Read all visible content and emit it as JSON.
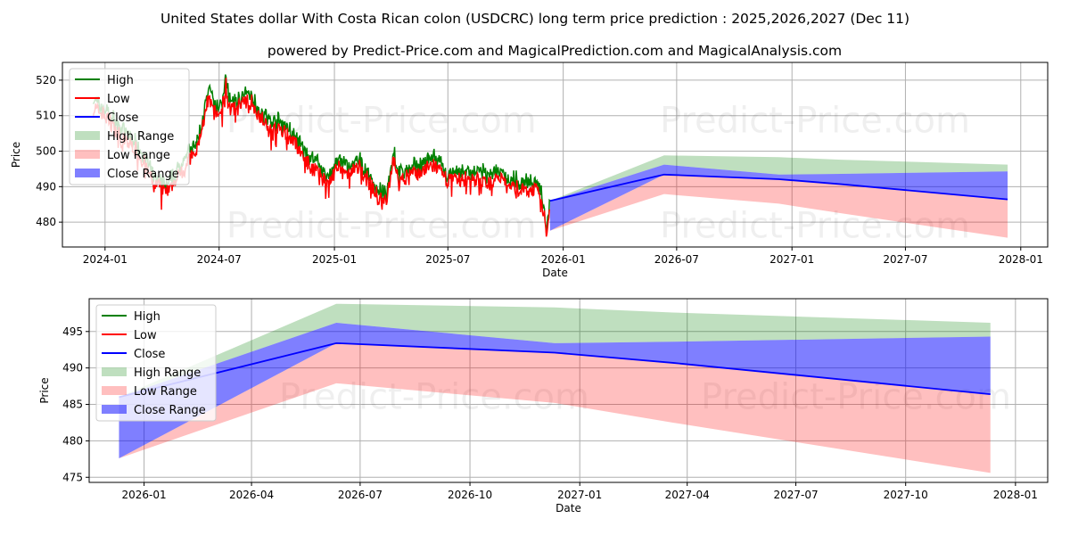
{
  "title": "United States dollar With Costa Rican colon (USDCRC) long term price prediction : 2025,2026,2027 (Dec 11)",
  "subtitle": "powered by Predict-Price.com and MagicalPrediction.com and MagicalAnalysis.com",
  "watermark": "Predict-Price.com",
  "colors": {
    "high": "#008000",
    "low": "#ff0000",
    "close": "#0000ff",
    "high_range": "#bfdfbf",
    "low_range": "#ffbfbf",
    "close_range": "#7f7fff"
  },
  "legend": [
    "High",
    "Low",
    "Close",
    "High Range",
    "Low Range",
    "Close Range"
  ],
  "chart_data": [
    {
      "type": "line",
      "panel": "top",
      "xlabel": "Date",
      "ylabel": "Price",
      "xlim": [
        "2023-10-25",
        "2028-02-13"
      ],
      "ylim": [
        473,
        525
      ],
      "xticks": [
        "2024-01",
        "2024-07",
        "2025-01",
        "2025-07",
        "2026-01",
        "2026-07",
        "2027-01",
        "2027-07",
        "2028-01"
      ],
      "yticks": [
        480,
        490,
        500,
        510,
        520
      ],
      "grid": true,
      "legend_position": "top-left",
      "history_close": [
        [
          "2023-12-13",
          513
        ],
        [
          "2024-01-05",
          510
        ],
        [
          "2024-01-25",
          505
        ],
        [
          "2024-02-15",
          502
        ],
        [
          "2024-03-05",
          497
        ],
        [
          "2024-03-20",
          491
        ],
        [
          "2024-04-10",
          489
        ],
        [
          "2024-04-25",
          493
        ],
        [
          "2024-05-10",
          498
        ],
        [
          "2024-05-25",
          500
        ],
        [
          "2024-06-05",
          508
        ],
        [
          "2024-06-15",
          516
        ],
        [
          "2024-06-25",
          511
        ],
        [
          "2024-07-05",
          512
        ],
        [
          "2024-07-12",
          519
        ],
        [
          "2024-07-20",
          512
        ],
        [
          "2024-08-05",
          514
        ],
        [
          "2024-08-20",
          515
        ],
        [
          "2024-09-05",
          510
        ],
        [
          "2024-09-20",
          507
        ],
        [
          "2024-10-05",
          507
        ],
        [
          "2024-10-20",
          505
        ],
        [
          "2024-11-05",
          501
        ],
        [
          "2024-11-20",
          497
        ],
        [
          "2024-12-05",
          496
        ],
        [
          "2024-12-20",
          491
        ],
        [
          "2025-01-05",
          496
        ],
        [
          "2025-01-25",
          494
        ],
        [
          "2025-02-10",
          496
        ],
        [
          "2025-02-25",
          492
        ],
        [
          "2025-03-10",
          488
        ],
        [
          "2025-03-25",
          486
        ],
        [
          "2025-04-05",
          499
        ],
        [
          "2025-04-15",
          492
        ],
        [
          "2025-05-01",
          494
        ],
        [
          "2025-05-20",
          495
        ],
        [
          "2025-06-10",
          497
        ],
        [
          "2025-06-25",
          493
        ],
        [
          "2025-07-10",
          492
        ],
        [
          "2025-07-25",
          493
        ],
        [
          "2025-08-15",
          493
        ],
        [
          "2025-09-01",
          492
        ],
        [
          "2025-09-20",
          493
        ],
        [
          "2025-10-05",
          491
        ],
        [
          "2025-10-25",
          490
        ],
        [
          "2025-11-10",
          490
        ],
        [
          "2025-11-25",
          489
        ],
        [
          "2025-12-03",
          481
        ],
        [
          "2025-12-06",
          477
        ],
        [
          "2025-12-11",
          486
        ]
      ]
    },
    {
      "type": "area",
      "panel": "bottom",
      "xlabel": "Date",
      "ylabel": "Price",
      "xlim": [
        "2025-11-16",
        "2028-01-28"
      ],
      "ylim": [
        474.3,
        499.5
      ],
      "xticks": [
        "2026-01",
        "2026-04",
        "2026-07",
        "2026-10",
        "2027-01",
        "2027-04",
        "2027-07",
        "2027-10",
        "2028-01"
      ],
      "yticks": [
        475,
        480,
        485,
        490,
        495
      ],
      "grid": true,
      "legend_position": "top-left",
      "forecast": {
        "dates": [
          "2025-12-11",
          "2026-06-11",
          "2026-12-11",
          "2027-03-20",
          "2027-12-11"
        ],
        "close": [
          486.0,
          493.4,
          492.1,
          490.7,
          486.4
        ],
        "high_range": [
          [
            486.0,
            486.0
          ],
          [
            496.2,
            498.8
          ],
          [
            493.4,
            498.3
          ],
          [
            493.6,
            497.6
          ],
          [
            494.3,
            496.2
          ]
        ],
        "close_range": [
          [
            477.6,
            486.0
          ],
          [
            493.4,
            496.2
          ],
          [
            492.1,
            493.4
          ],
          [
            490.7,
            493.6
          ],
          [
            486.4,
            494.3
          ]
        ],
        "low_range": [
          [
            477.6,
            477.6
          ],
          [
            487.9,
            493.4
          ],
          [
            485.2,
            492.1
          ],
          [
            482.5,
            490.7
          ],
          [
            475.6,
            486.4
          ]
        ]
      }
    }
  ]
}
